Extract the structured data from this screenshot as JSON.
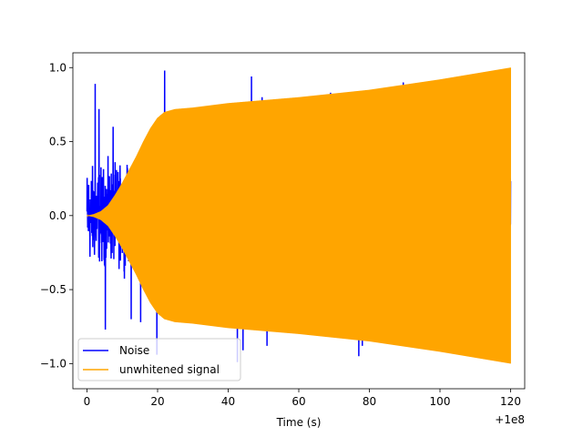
{
  "chart_data": {
    "type": "line",
    "title": "",
    "xlabel": "Time (s)",
    "ylabel": "",
    "x_offset_label": "+1e8",
    "xlim": [
      -4,
      124
    ],
    "ylim": [
      -1.17,
      1.1
    ],
    "xticks": [
      0,
      20,
      40,
      60,
      80,
      100,
      120
    ],
    "xtick_labels": [
      "0",
      "20",
      "40",
      "60",
      "80",
      "100",
      "120"
    ],
    "yticks": [
      -1.0,
      -0.5,
      0.0,
      0.5,
      1.0
    ],
    "ytick_labels": [
      "−1.0",
      "−0.5",
      "0.0",
      "0.5",
      "1.0"
    ],
    "grid": false,
    "legend_position": "lower left",
    "series": [
      {
        "name": "Noise",
        "color": "#0000ff",
        "style": "noise",
        "x_range": [
          0,
          120
        ],
        "amplitude_typical": 0.45,
        "spikes": [
          {
            "x": 2.3,
            "y": 0.89
          },
          {
            "x": 3.4,
            "y": 0.72
          },
          {
            "x": 5.2,
            "y": -0.77
          },
          {
            "x": 7.4,
            "y": 0.6
          },
          {
            "x": 12.5,
            "y": -0.7
          },
          {
            "x": 15.2,
            "y": -0.72
          },
          {
            "x": 19.8,
            "y": -0.94
          },
          {
            "x": 22.0,
            "y": 0.98
          },
          {
            "x": 42.6,
            "y": -0.99
          },
          {
            "x": 44.2,
            "y": -0.91
          },
          {
            "x": 46.6,
            "y": 0.94
          },
          {
            "x": 49.6,
            "y": 0.8
          },
          {
            "x": 51.0,
            "y": -0.88
          },
          {
            "x": 66.8,
            "y": 0.8
          },
          {
            "x": 69.0,
            "y": 0.83
          },
          {
            "x": 73.6,
            "y": 0.81
          },
          {
            "x": 77.0,
            "y": -0.95
          },
          {
            "x": 78.0,
            "y": -0.88
          },
          {
            "x": 89.6,
            "y": 0.9
          },
          {
            "x": 105.6,
            "y": 0.87
          }
        ]
      },
      {
        "name": "unwhitened signal",
        "color": "#ffa500",
        "style": "chirp",
        "envelope": {
          "x": [
            0,
            2,
            4,
            6,
            8,
            10,
            12,
            14,
            16,
            18,
            20,
            22,
            25,
            30,
            40,
            60,
            80,
            100,
            110,
            120
          ],
          "y": [
            0.0,
            0.01,
            0.03,
            0.07,
            0.14,
            0.22,
            0.31,
            0.4,
            0.5,
            0.59,
            0.66,
            0.7,
            0.72,
            0.73,
            0.76,
            0.8,
            0.85,
            0.92,
            0.96,
            1.0
          ]
        }
      }
    ]
  }
}
